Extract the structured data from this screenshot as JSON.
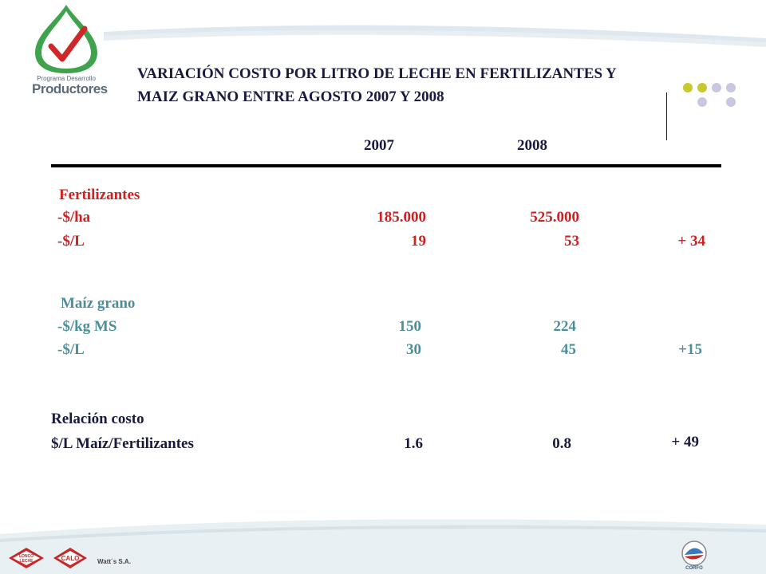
{
  "logo": {
    "line1": "Programa Desarrollo",
    "line2": "Productores"
  },
  "title": {
    "line1": "VARIACIÓN COSTO POR LITRO DE LECHE EN FERTILIZANTES Y",
    "line2": "MAIZ GRANO  ENTRE AGOSTO 2007 Y 2008"
  },
  "table": {
    "headers": [
      "2007",
      "2008"
    ],
    "fertilizantes": {
      "label": "Fertilizantes",
      "rows": [
        {
          "label": "-$/ha",
          "v2007": "185.000",
          "v2008": "525.000",
          "diff": ""
        },
        {
          "label": "-$/L",
          "v2007": "19",
          "v2008": "53",
          "diff": "+ 34"
        }
      ]
    },
    "maiz": {
      "label": "Maíz grano",
      "rows": [
        {
          "label": "-$/kg MS",
          "v2007": "150",
          "v2008": "224",
          "diff": ""
        },
        {
          "label": "-$/L",
          "v2007": "30",
          "v2008": "45",
          "diff": "+15"
        }
      ]
    },
    "relacion": {
      "label1": "Relación costo",
      "label2": "$/L  Maíz/Fertilizantes",
      "v2007": "1.6",
      "v2008": "0.8",
      "diff": "+ 49"
    }
  },
  "footer": {
    "badge1": "LONCO LECHE",
    "badge2": "CALO",
    "company": "Watt´s S.A.",
    "corfo": "CORFO"
  },
  "colors": {
    "title": "#1a1a40",
    "fertilizantes": "#cc2222",
    "maiz": "#4a8f9a",
    "accent_dot_yellow": "#c8c830",
    "accent_dot_lavender": "#c8c8e0"
  }
}
